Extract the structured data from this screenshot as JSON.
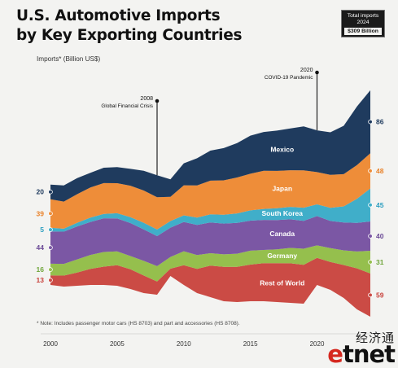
{
  "header": {
    "title_line1": "U.S. Automotive Imports",
    "title_line2": "by Key Exporting Countries"
  },
  "badge": {
    "line1": "Total imports",
    "line2": "2024",
    "value": "$309 Billion"
  },
  "axis_note": "Imports* (Billion US$)",
  "footnote": "* Note: Includes passenger motor cars (HS 8703) and part and accessories (HS 8708).",
  "watermark": {
    "chinese": "经济通",
    "logo_e": "e",
    "logo_rest": "tnet"
  },
  "chart_data": {
    "type": "area",
    "stacked": true,
    "x": [
      2000,
      2001,
      2002,
      2003,
      2004,
      2005,
      2006,
      2007,
      2008,
      2009,
      2010,
      2011,
      2012,
      2013,
      2014,
      2015,
      2016,
      2017,
      2018,
      2019,
      2020,
      2021,
      2022,
      2023,
      2024
    ],
    "xticks": [
      2000,
      2005,
      2010,
      2015,
      2020
    ],
    "series": [
      {
        "name": "Rest of World",
        "color": "#cb4b45",
        "label_color": "#c8413b",
        "values": [
          13,
          15,
          18,
          22,
          25,
          28,
          27,
          24,
          18,
          10,
          27,
          33,
          43,
          47,
          48,
          50,
          52,
          53,
          54,
          53,
          37,
          38,
          45,
          56,
          59
        ]
      },
      {
        "name": "Germany",
        "color": "#95bf4d",
        "label_color": "#6fa53a",
        "values": [
          16,
          16,
          18,
          19,
          20,
          19,
          18,
          20,
          21,
          16,
          19,
          19,
          17,
          17,
          18,
          19,
          18,
          19,
          21,
          22,
          17,
          19,
          20,
          23,
          31
        ]
      },
      {
        "name": "Canada",
        "color": "#7b57a4",
        "label_color": "#6b4a96",
        "values": [
          44,
          44,
          45,
          45,
          46,
          45,
          45,
          43,
          41,
          40,
          40,
          41,
          42,
          42,
          42,
          41,
          41,
          40,
          39,
          38,
          40,
          37,
          38,
          39,
          40
        ]
      },
      {
        "name": "South Korea",
        "color": "#40aec9",
        "label_color": "#2d9fc0",
        "values": [
          5,
          4,
          5,
          6,
          6,
          7,
          8,
          9,
          9,
          9,
          9,
          10,
          11,
          12,
          13,
          14,
          15,
          16,
          17,
          18,
          16,
          18,
          22,
          33,
          45
        ]
      },
      {
        "name": "Japan",
        "color": "#ee8d39",
        "label_color": "#e9822a",
        "values": [
          39,
          37,
          39,
          41,
          42,
          41,
          43,
          44,
          44,
          33,
          41,
          44,
          46,
          47,
          49,
          50,
          52,
          51,
          50,
          51,
          44,
          45,
          44,
          46,
          48
        ]
      },
      {
        "name": "Mexico",
        "color": "#1f3b5e",
        "label_color": "#1f3b5e",
        "values": [
          20,
          22,
          22,
          20,
          21,
          22,
          23,
          27,
          30,
          24,
          30,
          37,
          41,
          44,
          47,
          52,
          53,
          55,
          57,
          60,
          57,
          58,
          66,
          80,
          86
        ]
      }
    ],
    "annotations": [
      {
        "year": 2008,
        "label_line1": "2008",
        "label_line2": "Global Financial Crisis"
      },
      {
        "year": 2020,
        "label_line1": "2020",
        "label_line2": "COVID-19 Pandemic"
      }
    ]
  }
}
